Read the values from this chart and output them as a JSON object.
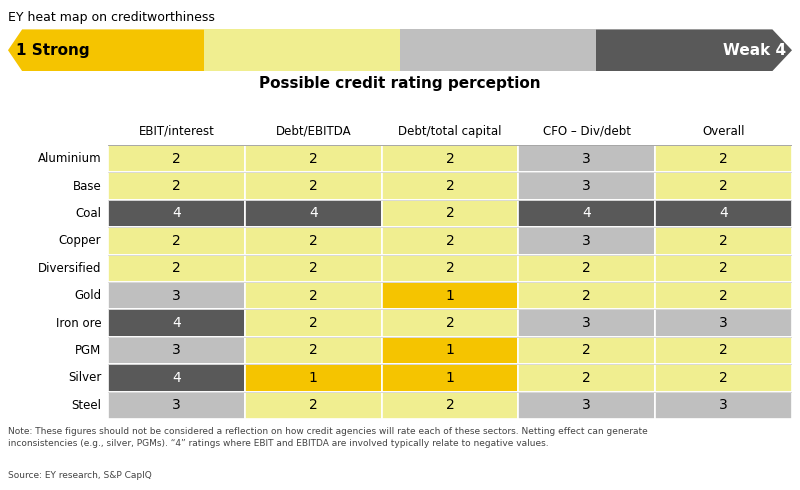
{
  "title": "EY heat map on creditworthiness",
  "subtitle": "Possible credit rating perception",
  "rows": [
    "Aluminium",
    "Base",
    "Coal",
    "Copper",
    "Diversified",
    "Gold",
    "Iron ore",
    "PGM",
    "Silver",
    "Steel"
  ],
  "cols": [
    "EBIT/interest",
    "Debt/EBITDA",
    "Debt/total capital",
    "CFO – Div/debt",
    "Overall"
  ],
  "values": [
    [
      2,
      2,
      2,
      3,
      2
    ],
    [
      2,
      2,
      2,
      3,
      2
    ],
    [
      4,
      4,
      2,
      4,
      4
    ],
    [
      2,
      2,
      2,
      3,
      2
    ],
    [
      2,
      2,
      2,
      2,
      2
    ],
    [
      3,
      2,
      1,
      2,
      2
    ],
    [
      4,
      2,
      2,
      3,
      3
    ],
    [
      3,
      2,
      1,
      2,
      2
    ],
    [
      4,
      1,
      1,
      2,
      2
    ],
    [
      3,
      2,
      2,
      3,
      3
    ]
  ],
  "color_map": {
    "1": "#F5C400",
    "2": "#F0EE90",
    "3": "#BFBFBF",
    "4": "#595959"
  },
  "text_color_map": {
    "1": "#000000",
    "2": "#000000",
    "3": "#000000",
    "4": "#FFFFFF"
  },
  "note": "Note: These figures should not be considered a reflection on how credit agencies will rate each of these sectors. Netting effect can generate\ninconsistencies (e.g., silver, PGMs). “4” ratings where EBIT and EBITDA are involved typically relate to negative values.",
  "source": "Source: EY research, S&P CapIQ",
  "arrow_colors": [
    "#F5C400",
    "#F0EE90",
    "#BFBFBF",
    "#595959"
  ],
  "strong_label": "1 Strong",
  "weak_label": "Weak 4",
  "bg_color": "#FFFFFF"
}
